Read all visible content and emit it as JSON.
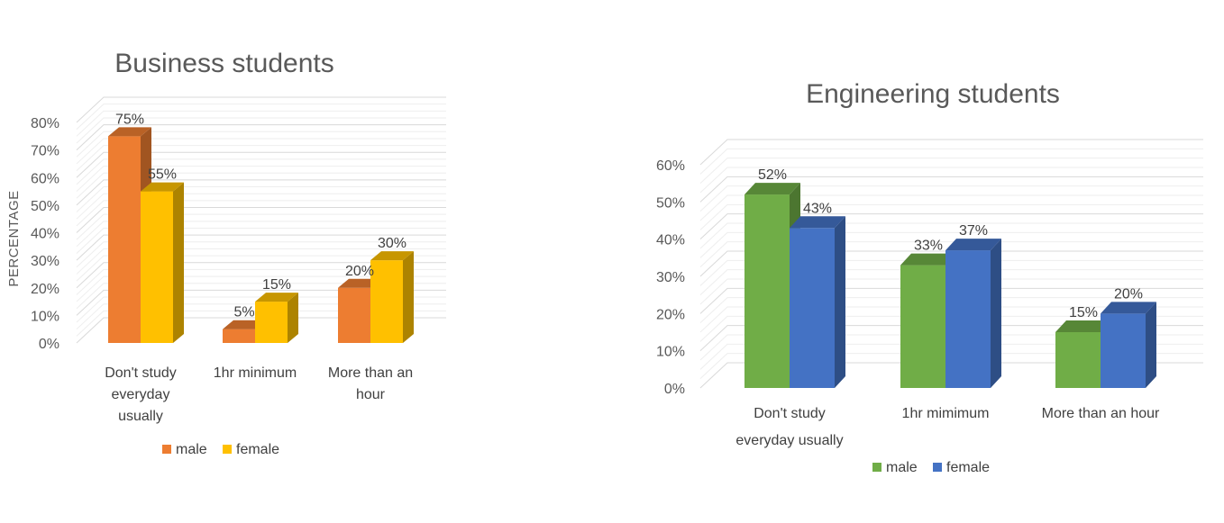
{
  "chart_data": [
    {
      "type": "bar",
      "title": "Business students",
      "ylabel": "PERCENTAGE",
      "xlabel": "",
      "ylim": [
        0,
        80
      ],
      "ytick_labels": [
        "0%",
        "10%",
        "20%",
        "30%",
        "40%",
        "50%",
        "60%",
        "70%",
        "80%"
      ],
      "categories": [
        "Don't study everyday usually",
        "1hr minimum",
        "More than an hour"
      ],
      "series": [
        {
          "name": "male",
          "values": [
            75,
            5,
            20
          ],
          "labels": [
            "75%",
            "5%",
            "20%"
          ],
          "color": "#ED7D31"
        },
        {
          "name": "female",
          "values": [
            55,
            15,
            30
          ],
          "labels": [
            "55%",
            "15%",
            "30%"
          ],
          "color": "#FFC000"
        }
      ],
      "legend": "bottom",
      "grid": true,
      "style": "3d"
    },
    {
      "type": "bar",
      "title": "Engineering students",
      "ylabel": "",
      "xlabel": "",
      "ylim": [
        0,
        60
      ],
      "ytick_labels": [
        "0%",
        "10%",
        "20%",
        "30%",
        "40%",
        "50%",
        "60%"
      ],
      "categories": [
        "Don't study everyday usually",
        "1hr mimimum",
        "More than an hour"
      ],
      "series": [
        {
          "name": "male",
          "values": [
            52,
            33,
            15
          ],
          "labels": [
            "52%",
            "33%",
            "15%"
          ],
          "color": "#70AD47"
        },
        {
          "name": "female",
          "values": [
            43,
            37,
            20
          ],
          "labels": [
            "43%",
            "37%",
            "20%"
          ],
          "color": "#4472C4"
        }
      ],
      "legend": "bottom",
      "grid": true,
      "style": "3d"
    }
  ]
}
